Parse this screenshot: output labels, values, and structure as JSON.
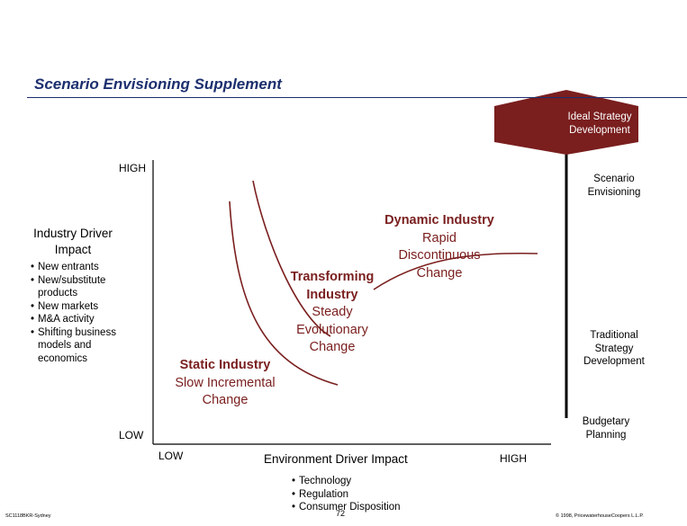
{
  "header": {
    "title": "Scenario Envisioning Supplement",
    "banner_label": "Ideal Strategy Development"
  },
  "y_axis": {
    "title": "Industry Driver Impact",
    "high_label": "HIGH",
    "low_label": "LOW",
    "drivers": [
      "New entrants",
      "New/substitute products",
      "New markets",
      "M&A activity",
      "Shifting business models and economics"
    ]
  },
  "x_axis": {
    "title": "Environment Driver Impact",
    "low_label": "LOW",
    "high_label": "HIGH",
    "drivers": [
      "Technology",
      "Regulation",
      "Consumer Disposition"
    ]
  },
  "regions": {
    "static": {
      "title": "Static Industry",
      "line1": "Slow Incremental",
      "line2": "Change"
    },
    "transforming": {
      "title": "Transforming",
      "title2": "Industry",
      "line1": "Steady",
      "line2": "Evolutionary",
      "line3": "Change"
    },
    "dynamic": {
      "title": "Dynamic Industry",
      "line1": "Rapid",
      "line2": "Discontinuous",
      "line3": "Change"
    }
  },
  "scale": {
    "scenario": "Scenario Envisioning",
    "traditional": "Traditional Strategy Development",
    "budgetary": "Budgetary Planning"
  },
  "footer": {
    "left": "SC1118BKR-Sydney",
    "page": "72",
    "right": "© 1998, PricewaterhouseCoopers L.L.P."
  },
  "colors": {
    "accent": "#7a1e1e",
    "title": "#1c2f6e"
  }
}
